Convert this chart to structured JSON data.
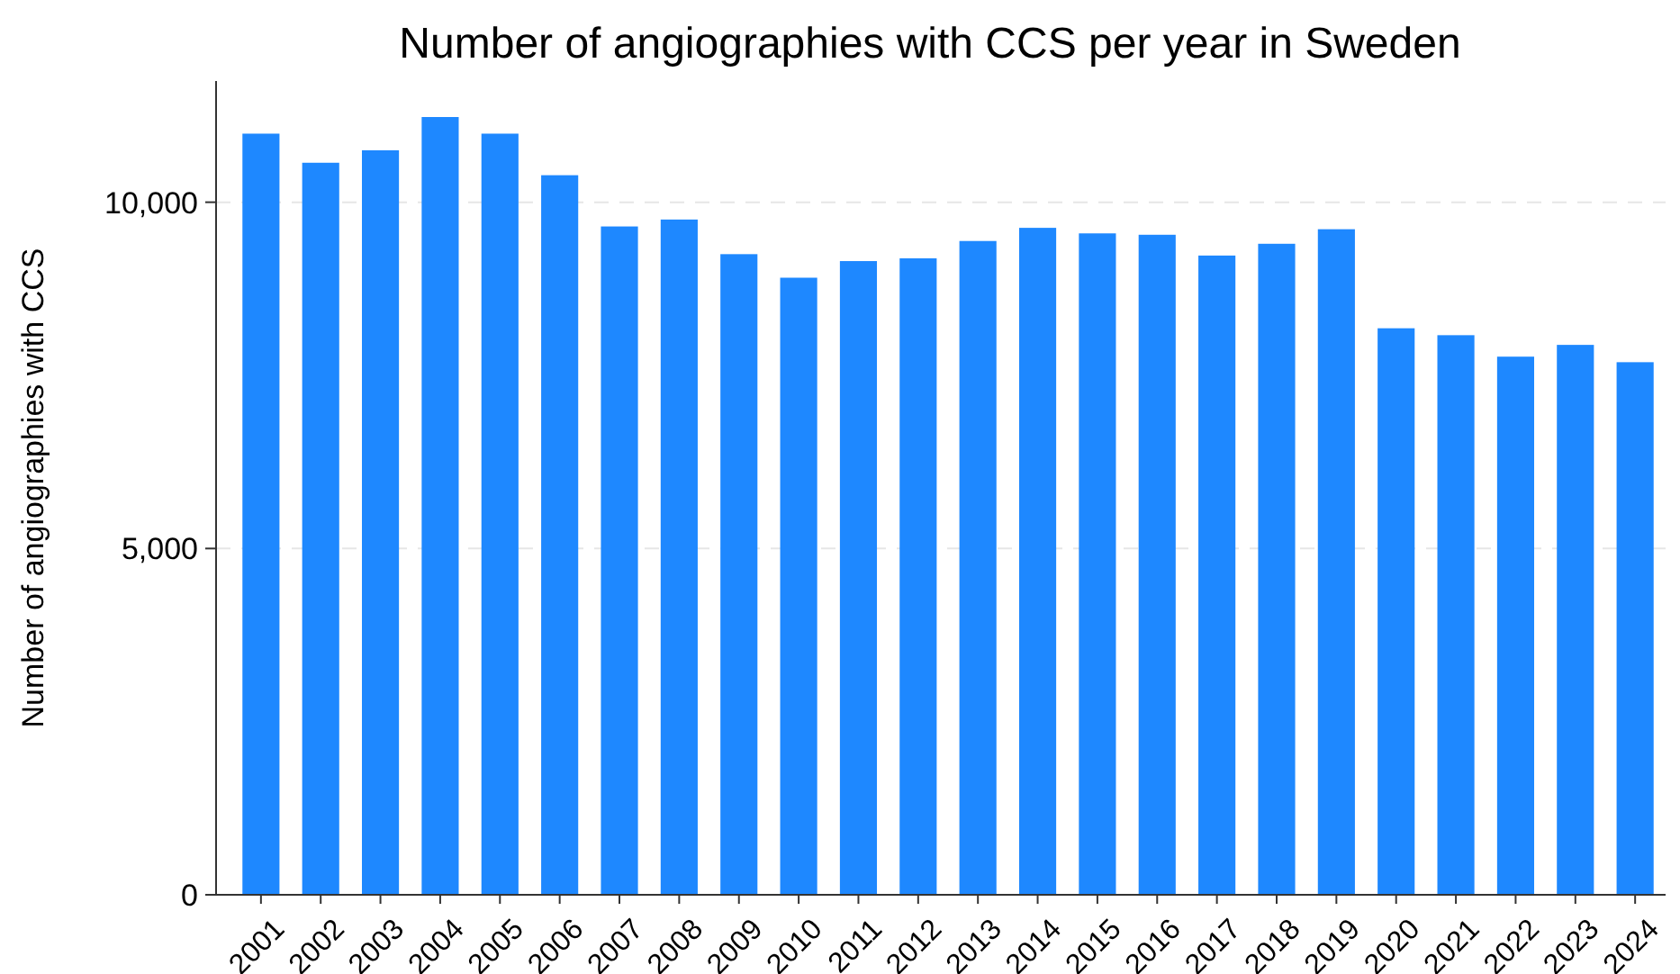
{
  "chart_data": {
    "type": "bar",
    "title": "Number of angiographies with CCS per year in Sweden",
    "ylabel": "Number of angiographies with CCS",
    "categories": [
      "2001",
      "2002",
      "2003",
      "2004",
      "2005",
      "2006",
      "2007",
      "2008",
      "2009",
      "2010",
      "2011",
      "2012",
      "2013",
      "2014",
      "2015",
      "2016",
      "2017",
      "2018",
      "2019",
      "2020",
      "2021",
      "2022",
      "2023",
      "2024"
    ],
    "values": [
      10990,
      10570,
      10750,
      11230,
      10990,
      10390,
      9650,
      9750,
      9250,
      8910,
      9150,
      9190,
      9440,
      9630,
      9550,
      9530,
      9230,
      9400,
      9610,
      8180,
      8080,
      7770,
      7940,
      7690
    ],
    "color": "#1e88ff",
    "ylim": [
      0,
      11750
    ],
    "yticks": [
      {
        "value": 0,
        "label": "0"
      },
      {
        "value": 5000,
        "label": "5,000"
      },
      {
        "value": 10000,
        "label": "10,000"
      }
    ],
    "grid": "y"
  }
}
